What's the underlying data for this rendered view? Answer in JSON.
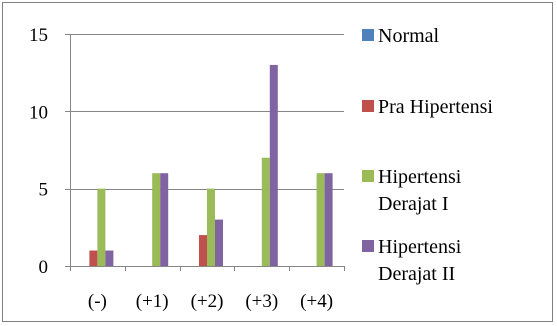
{
  "chart_data": {
    "type": "bar",
    "categories": [
      "(-)",
      "(+1)",
      "(+2)",
      "(+3)",
      "(+4)"
    ],
    "ylim": [
      0,
      15
    ],
    "yticks": [
      0,
      5,
      10,
      15
    ],
    "grid": "horizontal",
    "legend_position": "right",
    "series": [
      {
        "name": "Normal",
        "color": "#4f81bd",
        "values": [
          0,
          0,
          0,
          0,
          0
        ]
      },
      {
        "name": "Pra Hipertensi",
        "color": "#c0504d",
        "values": [
          1,
          0,
          2,
          0,
          0
        ]
      },
      {
        "name": "Hipertensi Derajat I",
        "legend_lines": [
          "Hipertensi",
          "Derajat I"
        ],
        "color": "#9bbb59",
        "values": [
          5,
          6,
          5,
          7,
          6
        ]
      },
      {
        "name": "Hipertensi Derajat II",
        "legend_lines": [
          "Hipertensi",
          "Derajat II"
        ],
        "color": "#8064a2",
        "values": [
          1,
          6,
          3,
          13,
          6
        ]
      }
    ]
  }
}
